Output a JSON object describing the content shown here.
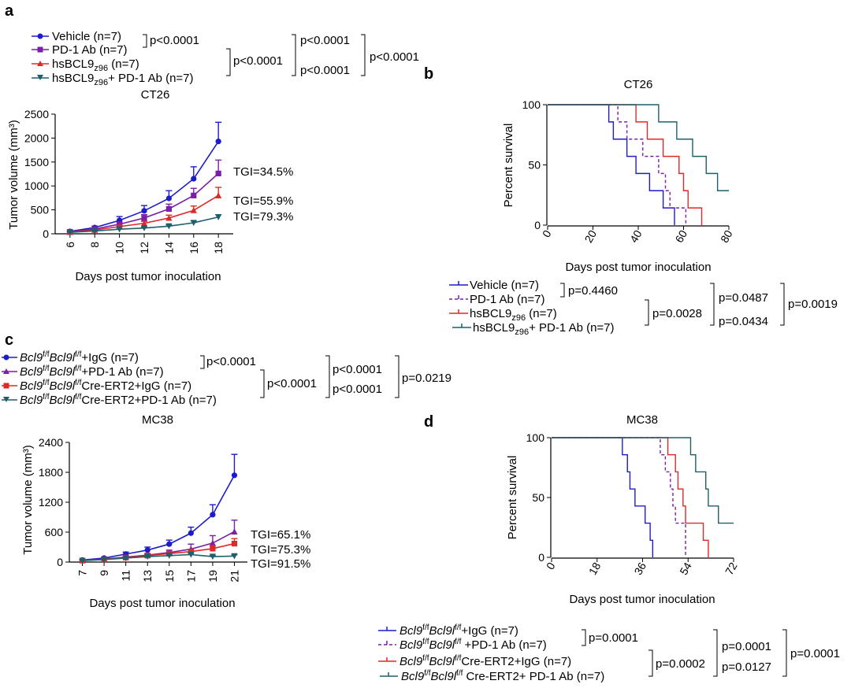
{
  "colors": {
    "vehicle": "#1c1ccc",
    "pd1": "#7a1fa6",
    "hsbcl9": "#e02828",
    "combo": "#1e5f6a"
  },
  "chart_data": [
    {
      "id": "a",
      "panel_label": "a",
      "type": "line",
      "title": "CT26",
      "xlabel": "Days post tumor inoculation",
      "ylabel": "Tumor volume (mm³)",
      "x": [
        6,
        8,
        10,
        12,
        14,
        16,
        18
      ],
      "ylim": [
        0,
        2500
      ],
      "yticks": [
        0,
        500,
        1000,
        1500,
        2000,
        2500
      ],
      "series": [
        {
          "name": "Vehicle (n=7)",
          "color": "#1c1ccc",
          "marker": "circle",
          "values": [
            50,
            130,
            280,
            480,
            740,
            1150,
            1930
          ],
          "err": [
            15,
            30,
            80,
            110,
            160,
            250,
            400
          ]
        },
        {
          "name": "PD-1 Ab (n=7)",
          "color": "#7a1fa6",
          "marker": "square",
          "values": [
            40,
            100,
            200,
            330,
            520,
            800,
            1260
          ],
          "err": [
            10,
            20,
            45,
            70,
            100,
            150,
            280
          ]
        },
        {
          "name": "hsBCL9z96 (n=7)",
          "color": "#e02828",
          "marker": "triangle",
          "values": [
            35,
            80,
            150,
            220,
            330,
            490,
            800
          ],
          "err": [
            10,
            15,
            30,
            40,
            60,
            90,
            170
          ]
        },
        {
          "name": "hsBCL9z96+ PD-1 Ab (n=7)",
          "color": "#1e5f6a",
          "marker": "tridown",
          "values": [
            30,
            60,
            95,
            120,
            160,
            230,
            350
          ],
          "err": [
            8,
            10,
            15,
            20,
            25,
            40,
            50
          ]
        }
      ],
      "annotations": [
        "TGI=34.5%",
        "TGI=55.9%",
        "TGI=79.3%"
      ],
      "legend": {
        "items": [
          {
            "main": "Vehicle (n=7)",
            "suffix": ""
          },
          {
            "main": "PD-1 Ab (n=7)",
            "suffix": ""
          },
          {
            "main": "hsBCL9",
            "sub": "z96",
            "suffix": " (n=7)"
          },
          {
            "main": "hsBCL9",
            "sub": "z96",
            "suffix": "+ PD-1 Ab (n=7)"
          }
        ],
        "pvalues": [
          "p<0.0001",
          "p<0.0001",
          "p<0.0001",
          "p<0.0001",
          "p<0.0001"
        ]
      }
    },
    {
      "id": "b",
      "panel_label": "b",
      "type": "line",
      "title": "CT26",
      "xlabel": "Days post tumor inoculation",
      "ylabel": "Percent survival",
      "xlim": [
        0,
        80
      ],
      "xticks": [
        0,
        20,
        40,
        60,
        80
      ],
      "ylim": [
        0,
        100
      ],
      "yticks": [
        0,
        50,
        100
      ],
      "series": [
        {
          "name": "Vehicle (n=7)",
          "color": "#1c1ccc",
          "dash": false,
          "steps": [
            [
              0,
              100
            ],
            [
              27,
              85.7
            ],
            [
              29,
              71.4
            ],
            [
              35,
              57.1
            ],
            [
              39,
              42.9
            ],
            [
              45,
              28.6
            ],
            [
              51,
              14.3
            ],
            [
              56,
              0
            ]
          ]
        },
        {
          "name": "PD-1 Ab (n=7)",
          "color": "#7a1fa6",
          "dash": true,
          "steps": [
            [
              0,
              100
            ],
            [
              31,
              85.7
            ],
            [
              35,
              71.4
            ],
            [
              42,
              57.1
            ],
            [
              49,
              42.9
            ],
            [
              52,
              28.6
            ],
            [
              54,
              14.3
            ],
            [
              61,
              0
            ]
          ]
        },
        {
          "name": "hsBCL9z96 (n=7)",
          "color": "#e02828",
          "dash": false,
          "steps": [
            [
              0,
              100
            ],
            [
              39,
              85.7
            ],
            [
              44,
              71.4
            ],
            [
              51,
              57.1
            ],
            [
              58,
              42.9
            ],
            [
              60,
              28.6
            ],
            [
              62,
              14.3
            ],
            [
              68,
              0
            ]
          ]
        },
        {
          "name": "hsBCL9z96+ PD-1 Ab (n=7)",
          "color": "#1e5f6a",
          "dash": false,
          "steps": [
            [
              0,
              100
            ],
            [
              49,
              85.7
            ],
            [
              57,
              71.4
            ],
            [
              64,
              57.1
            ],
            [
              70,
              42.9
            ],
            [
              75,
              28.6
            ],
            [
              80,
              28.6
            ]
          ]
        }
      ],
      "legend": {
        "items": [
          {
            "main": "Vehicle (n=7)",
            "suffix": ""
          },
          {
            "main": "PD-1 Ab (n=7)",
            "suffix": ""
          },
          {
            "main": "hsBCL9",
            "sub": "z96",
            "suffix": " (n=7)"
          },
          {
            "main": "hsBCL9",
            "sub": "z96",
            "suffix": "+ PD-1 Ab (n=7)"
          }
        ],
        "pvalues": [
          "p=0.4460",
          "p=0.0028",
          "p=0.0487",
          "p=0.0434",
          "p=0.0019"
        ]
      }
    },
    {
      "id": "c",
      "panel_label": "c",
      "type": "line",
      "title": "MC38",
      "xlabel": "Days post tumor inoculation",
      "ylabel": "Tumor volume (mm³)",
      "x": [
        7,
        9,
        11,
        13,
        15,
        17,
        19,
        21
      ],
      "ylim": [
        0,
        2400
      ],
      "yticks": [
        0,
        600,
        1200,
        1800,
        2400
      ],
      "series": [
        {
          "name": "Bcl9f/fBcl9lf/f+IgG (n=7)",
          "color": "#1c1ccc",
          "marker": "circle",
          "values": [
            40,
            80,
            160,
            240,
            360,
            580,
            950,
            1740
          ],
          "err": [
            10,
            20,
            40,
            60,
            80,
            120,
            200,
            420
          ]
        },
        {
          "name": "Bcl9f/fBcl9lf/f+PD-1 Ab (n=7)",
          "color": "#7a1fa6",
          "marker": "triangle",
          "values": [
            35,
            60,
            100,
            140,
            190,
            260,
            380,
            610
          ],
          "err": [
            8,
            10,
            20,
            30,
            50,
            100,
            150,
            230
          ]
        },
        {
          "name": "Bcl9f/fBcl9lf/fCre-ERT2+IgG (n=7)",
          "color": "#e02828",
          "marker": "square",
          "values": [
            30,
            55,
            90,
            130,
            170,
            210,
            270,
            370
          ],
          "err": [
            8,
            10,
            15,
            20,
            30,
            40,
            60,
            100
          ]
        },
        {
          "name": "Bcl9f/fBcl9lf/fCre-ERT2+PD-1 Ab (n=7)",
          "color": "#1e5f6a",
          "marker": "tridown",
          "values": [
            30,
            50,
            80,
            110,
            130,
            150,
            110,
            120
          ],
          "err": [
            5,
            10,
            15,
            20,
            20,
            30,
            20,
            25
          ]
        }
      ],
      "annotations": [
        "TGI=65.1%",
        "TGI=75.3%",
        "TGI=91.5%"
      ],
      "legend": {
        "items": [
          {
            "g1": "Bcl9",
            "s1": "f/f",
            "g2": "Bcl9l",
            "s2": "f/f",
            "rest": "+IgG (n=7)"
          },
          {
            "g1": "Bcl9",
            "s1": "f/f",
            "g2": "Bcl9l",
            "s2": "f/f",
            "rest": "+PD-1 Ab (n=7)"
          },
          {
            "g1": "Bcl9",
            "s1": "f/f",
            "g2": "Bcl9l",
            "s2": "f/f",
            "rest": "Cre-ERT2+IgG (n=7)"
          },
          {
            "g1": "Bcl9",
            "s1": "f/f",
            "g2": "Bcl9l",
            "s2": "f/f",
            "rest": "Cre-ERT2+PD-1 Ab (n=7)"
          }
        ],
        "pvalues": [
          "p<0.0001",
          "p<0.0001",
          "p<0.0001",
          "p<0.0001",
          "p=0.0219"
        ]
      }
    },
    {
      "id": "d",
      "panel_label": "d",
      "type": "line",
      "title": "MC38",
      "xlabel": "Days post tumor inoculation",
      "ylabel": "Percent survival",
      "xlim": [
        0,
        72
      ],
      "xticks": [
        0,
        18,
        36,
        54,
        72
      ],
      "ylim": [
        0,
        100
      ],
      "yticks": [
        0,
        50,
        100
      ],
      "series": [
        {
          "name": "Bcl9f/fBcl9lf/f+IgG (n=7)",
          "color": "#1c1ccc",
          "dash": false,
          "steps": [
            [
              0,
              100
            ],
            [
              28,
              85.7
            ],
            [
              30,
              71.4
            ],
            [
              31,
              57.1
            ],
            [
              33,
              42.9
            ],
            [
              37,
              28.6
            ],
            [
              39,
              14.3
            ],
            [
              40,
              0
            ]
          ]
        },
        {
          "name": "Bcl9f/fBcl9lf/f +PD-1 Ab (n=7)",
          "color": "#7a1fa6",
          "dash": true,
          "steps": [
            [
              0,
              100
            ],
            [
              43,
              85.7
            ],
            [
              45,
              71.4
            ],
            [
              47,
              57.1
            ],
            [
              48,
              42.9
            ],
            [
              49,
              28.6
            ],
            [
              53,
              0
            ]
          ]
        },
        {
          "name": "Bcl9f/fBcl9lf/fCre-ERT2+IgG (n=7)",
          "color": "#e02828",
          "dash": false,
          "steps": [
            [
              0,
              100
            ],
            [
              46,
              85.7
            ],
            [
              49,
              71.4
            ],
            [
              50,
              57.1
            ],
            [
              52,
              42.9
            ],
            [
              53,
              28.6
            ],
            [
              60,
              14.3
            ],
            [
              62,
              0
            ]
          ]
        },
        {
          "name": "Bcl9f/fBcl9lf/f Cre-ERT2+ PD-1 Ab (n=7)",
          "color": "#1e5f6a",
          "dash": false,
          "steps": [
            [
              0,
              100
            ],
            [
              55,
              85.7
            ],
            [
              57,
              71.4
            ],
            [
              61,
              57.1
            ],
            [
              62,
              42.9
            ],
            [
              66,
              28.6
            ],
            [
              72,
              28.6
            ]
          ]
        }
      ],
      "legend": {
        "items": [
          {
            "g1": "Bcl9",
            "s1": "f/f",
            "g2": "Bcl9l",
            "s2": "f/f",
            "rest": "+IgG (n=7)"
          },
          {
            "g1": "Bcl9",
            "s1": "f/f",
            "g2": "Bcl9l",
            "s2": "f/f",
            "rest": " +PD-1 Ab (n=7)"
          },
          {
            "g1": "Bcl9",
            "s1": "f/f",
            "g2": "Bcl9l",
            "s2": "f/f",
            "rest": "Cre-ERT2+IgG (n=7)"
          },
          {
            "g1": "Bcl9",
            "s1": "f/f",
            "g2": "Bcl9l",
            "s2": "f/f",
            "rest": " Cre-ERT2+ PD-1 Ab (n=7)"
          }
        ],
        "pvalues": [
          "p=0.0001",
          "p=0.0002",
          "p=0.0001",
          "p=0.0127",
          "p=0.0001"
        ]
      }
    }
  ]
}
